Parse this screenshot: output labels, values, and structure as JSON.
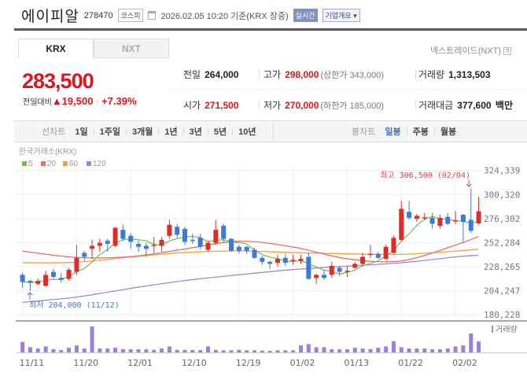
{
  "header": {
    "name": "에이피알",
    "code": "278470",
    "market": "코스피",
    "timestamp": "2026.02.05 10:20 기준(KRX 장중)",
    "realtime": "실시간",
    "company_info": "기업개요 ▾"
  },
  "tabs": [
    {
      "label": "KRX",
      "active": true
    },
    {
      "label": "NXT",
      "active": false
    }
  ],
  "nextrade_label": "넥스트레이드(NXT)",
  "help": "?",
  "quote": {
    "price": "283,500",
    "change_label": "전일대비",
    "change": "▲19,500",
    "change_pct": "+7.39%",
    "prev_label": "전일",
    "prev": "264,000",
    "open_label": "시가",
    "open": "271,500",
    "high_label": "고가",
    "high": "298,000",
    "upper_limit": "(상한가 343,000)",
    "low_label": "저가",
    "low": "270,000",
    "lower_limit": "(하한가 185,000)",
    "volume_label": "거래량",
    "volume": "1,313,503",
    "amount_label": "거래대금",
    "amount": "377,600",
    "amount_unit": "백만"
  },
  "line_chart_bar": {
    "label": "선차트",
    "items": [
      "1일",
      "1주일",
      "3개월",
      "1년",
      "3년",
      "5년",
      "10년"
    ]
  },
  "candle_chart_bar": {
    "label": "봉차트",
    "items": [
      "일봉",
      "주봉",
      "월봉"
    ],
    "selected": "일봉"
  },
  "colors": {
    "up": "#dd2c2c",
    "down": "#3b7ad8",
    "accent": "#e0141e",
    "volume": "#9c82d6"
  },
  "chart_data": {
    "type": "candlestick",
    "source": "한국거래소(KRX)",
    "legend": [
      {
        "name": "5",
        "color": "#6cc04a"
      },
      {
        "name": "20",
        "color": "#e86e6a"
      },
      {
        "name": "60",
        "color": "#f0a040"
      },
      {
        "name": "120",
        "color": "#a981d8"
      }
    ],
    "y_ticks": [
      "324,339",
      "300,320",
      "276,302",
      "252,284",
      "228,265",
      "204,247",
      "180,228"
    ],
    "ylim": [
      180228,
      324339
    ],
    "x_ticks": [
      "11/11",
      "11/20",
      "12/01",
      "12/10",
      "12/19",
      "01/02",
      "01/13",
      "01/22",
      "02/02"
    ],
    "dates": [
      "11/11",
      "11/12",
      "11/13",
      "11/14",
      "11/17",
      "11/18",
      "11/19",
      "11/20",
      "11/21",
      "11/24",
      "11/25",
      "11/26",
      "11/27",
      "11/28",
      "12/01",
      "12/02",
      "12/03",
      "12/04",
      "12/05",
      "12/08",
      "12/09",
      "12/10",
      "12/11",
      "12/12",
      "12/15",
      "12/16",
      "12/17",
      "12/18",
      "12/19",
      "12/22",
      "12/23",
      "12/24",
      "12/26",
      "12/29",
      "12/30",
      "01/02",
      "01/05",
      "01/06",
      "01/07",
      "01/08",
      "01/09",
      "01/12",
      "01/13",
      "01/14",
      "01/15",
      "01/16",
      "01/19",
      "01/20",
      "01/21",
      "01/22",
      "01/23",
      "01/26",
      "01/27",
      "01/28",
      "01/29",
      "01/30",
      "02/02",
      "02/03",
      "02/04",
      "02/05"
    ],
    "ohlc": [
      [
        220000,
        222000,
        207000,
        213000
      ],
      [
        214000,
        215000,
        204000,
        212000
      ],
      [
        211000,
        216000,
        210000,
        214000
      ],
      [
        209000,
        224000,
        208000,
        220000
      ],
      [
        223000,
        226000,
        216000,
        218000
      ],
      [
        217000,
        222000,
        212000,
        215000
      ],
      [
        216000,
        227000,
        214000,
        225000
      ],
      [
        223000,
        250000,
        220000,
        237000
      ],
      [
        242000,
        244000,
        234000,
        238000
      ],
      [
        246000,
        255000,
        236000,
        249000
      ],
      [
        249000,
        256000,
        243000,
        252000
      ],
      [
        254000,
        256000,
        243000,
        251000
      ],
      [
        249000,
        268000,
        248000,
        267000
      ],
      [
        265000,
        270000,
        254000,
        256000
      ],
      [
        259000,
        262000,
        246000,
        253000
      ],
      [
        251000,
        254000,
        243000,
        248000
      ],
      [
        249000,
        252000,
        238000,
        246000
      ],
      [
        249000,
        258000,
        242000,
        250000
      ],
      [
        249000,
        258000,
        243000,
        255000
      ],
      [
        259000,
        275000,
        256000,
        270000
      ],
      [
        268000,
        271000,
        257000,
        260000
      ],
      [
        266000,
        268000,
        250000,
        253000
      ],
      [
        255000,
        261000,
        251000,
        254000
      ],
      [
        257000,
        261000,
        246000,
        248000
      ],
      [
        245000,
        254000,
        243000,
        252000
      ],
      [
        252000,
        275000,
        250000,
        265000
      ],
      [
        269000,
        271000,
        253000,
        256000
      ],
      [
        256000,
        257000,
        243000,
        244000
      ],
      [
        248000,
        250000,
        241000,
        244000
      ],
      [
        248000,
        249000,
        241000,
        244000
      ],
      [
        245000,
        247000,
        236000,
        237000
      ],
      [
        237000,
        239000,
        230000,
        233000
      ],
      [
        233000,
        234000,
        226000,
        231000
      ],
      [
        232000,
        240000,
        228000,
        236000
      ],
      [
        237000,
        241000,
        229000,
        232000
      ],
      [
        234000,
        240000,
        230000,
        235000
      ],
      [
        234000,
        240000,
        231000,
        236000
      ],
      [
        238000,
        242000,
        215000,
        216000
      ],
      [
        217000,
        221000,
        211000,
        220000
      ],
      [
        220000,
        225000,
        215000,
        217000
      ],
      [
        220000,
        233000,
        217000,
        229000
      ],
      [
        227000,
        229000,
        219000,
        223000
      ],
      [
        223000,
        229000,
        218000,
        224000
      ],
      [
        227000,
        233000,
        226000,
        231000
      ],
      [
        231000,
        242000,
        229000,
        238000
      ],
      [
        240000,
        250000,
        237000,
        241000
      ],
      [
        241000,
        243000,
        236000,
        237000
      ],
      [
        236000,
        250000,
        235000,
        248000
      ],
      [
        242000,
        259000,
        241000,
        257000
      ],
      [
        255000,
        294000,
        254000,
        286000
      ],
      [
        283000,
        294000,
        275000,
        277000
      ],
      [
        276000,
        281000,
        273000,
        279000
      ],
      [
        277000,
        282000,
        275000,
        277500
      ],
      [
        277000,
        282000,
        266000,
        271000
      ],
      [
        269000,
        280000,
        266000,
        277000
      ],
      [
        278000,
        282000,
        270000,
        271000
      ],
      [
        274000,
        284000,
        271000,
        274500
      ],
      [
        280000,
        281000,
        253000,
        273000
      ],
      [
        275000,
        306500,
        262000,
        264000
      ],
      [
        271500,
        298000,
        270000,
        283500
      ]
    ],
    "ma_sample_dates": [
      "11/11",
      "11/20",
      "12/01",
      "12/10",
      "12/19",
      "01/02",
      "01/13",
      "01/22",
      "02/02",
      "02/05"
    ],
    "ma20": [
      243700,
      237400,
      238200,
      245800,
      253600,
      247800,
      236000,
      234000,
      249700,
      258300
    ],
    "ma60": [
      232100,
      232600,
      237900,
      242300,
      243900,
      242300,
      241000,
      240500,
      243700,
      245800
    ],
    "ma120": [
      192600,
      197800,
      206500,
      214300,
      220100,
      225300,
      228700,
      232100,
      237900,
      239700
    ],
    "volume_relative": [
      40,
      20,
      15,
      23,
      12,
      9,
      18,
      27,
      15,
      100,
      15,
      15,
      18,
      12,
      12,
      12,
      12,
      10,
      15,
      23,
      10,
      10,
      9,
      9,
      23,
      10,
      8,
      8,
      10,
      8,
      8,
      7,
      6,
      8,
      8,
      8,
      27,
      32,
      20,
      20,
      12,
      12,
      12,
      18,
      15,
      13,
      18,
      23,
      43,
      20,
      15,
      15,
      15,
      12,
      12,
      15,
      23,
      27,
      73,
      42
    ],
    "volume_label": "거래량",
    "high_annotation": "최고 306,500 (02/04)",
    "low_annotation": "최저 204,000 (11/12)"
  }
}
